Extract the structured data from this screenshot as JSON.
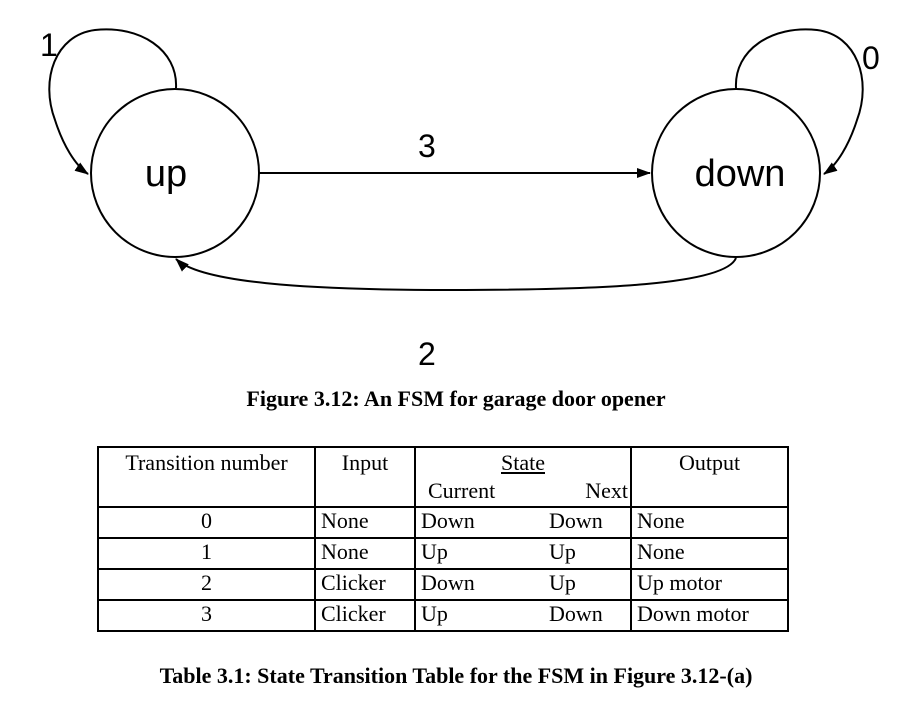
{
  "diagram": {
    "states": [
      {
        "id": "up",
        "label": "up"
      },
      {
        "id": "down",
        "label": "down"
      }
    ],
    "transitions": [
      {
        "number": "0",
        "from": "down",
        "to": "down"
      },
      {
        "number": "1",
        "from": "up",
        "to": "up"
      },
      {
        "number": "2",
        "from": "down",
        "to": "up"
      },
      {
        "number": "3",
        "from": "up",
        "to": "down"
      }
    ]
  },
  "figure_caption": "Figure 3.12: An FSM for garage door opener",
  "table": {
    "headers": {
      "transition_number": "Transition number",
      "input": "Input",
      "state": "State",
      "current": "Current",
      "next": "Next",
      "output": "Output"
    },
    "rows": [
      {
        "number": "0",
        "input": "None",
        "current": "Down",
        "next": "Down",
        "output": "None"
      },
      {
        "number": "1",
        "input": "None",
        "current": "Up",
        "next": "Up",
        "output": "None"
      },
      {
        "number": "2",
        "input": "Clicker",
        "current": "Down",
        "next": "Up",
        "output": "Up motor"
      },
      {
        "number": "3",
        "input": "Clicker",
        "current": "Up",
        "next": "Down",
        "output": "Down motor"
      }
    ]
  },
  "table_caption": "Table 3.1: State Transition Table for the FSM in Figure 3.12-(a)"
}
